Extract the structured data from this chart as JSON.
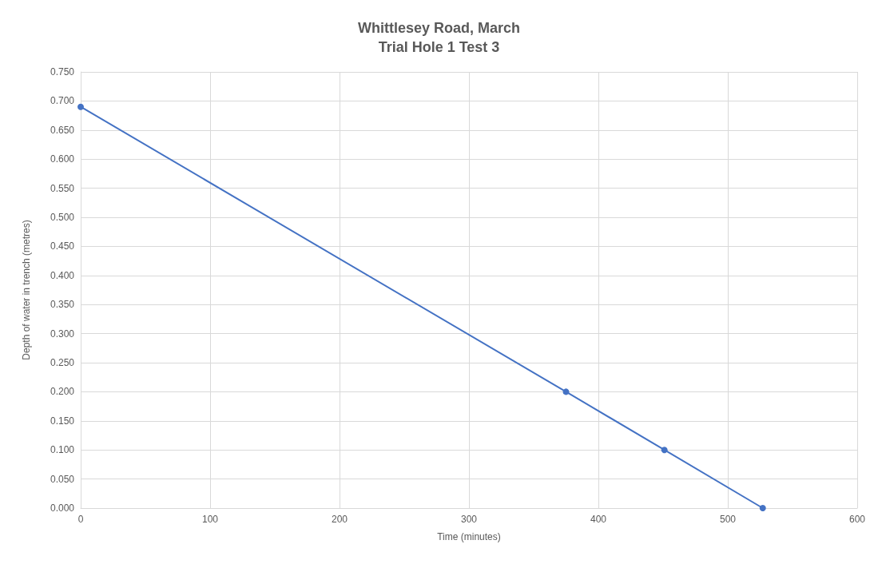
{
  "chart_data": {
    "type": "line",
    "title": "Whittlesey Road, March\nTrial Hole 1 Test 3",
    "xlabel": "Time (minutes)",
    "ylabel": "Depth of water in trench (metres)",
    "x": [
      0,
      375,
      451,
      527
    ],
    "series": [
      {
        "color": "#4472c4",
        "values": [
          0.69,
          0.2,
          0.1,
          0
        ]
      }
    ],
    "xlim": [
      0,
      600
    ],
    "xticks": [
      0,
      100,
      200,
      300,
      400,
      500,
      600
    ],
    "ylim": [
      0,
      0.75
    ],
    "yticks": [
      {
        "value": 0,
        "label": "0.000"
      },
      {
        "value": 0.05,
        "label": "0.050"
      },
      {
        "value": 0.1,
        "label": "0.100"
      },
      {
        "value": 0.15,
        "label": "0.150"
      },
      {
        "value": 0.2,
        "label": "0.200"
      },
      {
        "value": 0.25,
        "label": "0.250"
      },
      {
        "value": 0.3,
        "label": "0.300"
      },
      {
        "value": 0.35,
        "label": "0.350"
      },
      {
        "value": 0.4,
        "label": "0.400"
      },
      {
        "value": 0.45,
        "label": "0.450"
      },
      {
        "value": 0.5,
        "label": "0.500"
      },
      {
        "value": 0.55,
        "label": "0.550"
      },
      {
        "value": 0.6,
        "label": "0.600"
      },
      {
        "value": 0.65,
        "label": "0.650"
      },
      {
        "value": 0.7,
        "label": "0.700"
      },
      {
        "value": 0.75,
        "label": "0.750"
      }
    ],
    "grid": true,
    "marker": "circle",
    "line_style": "solid"
  }
}
